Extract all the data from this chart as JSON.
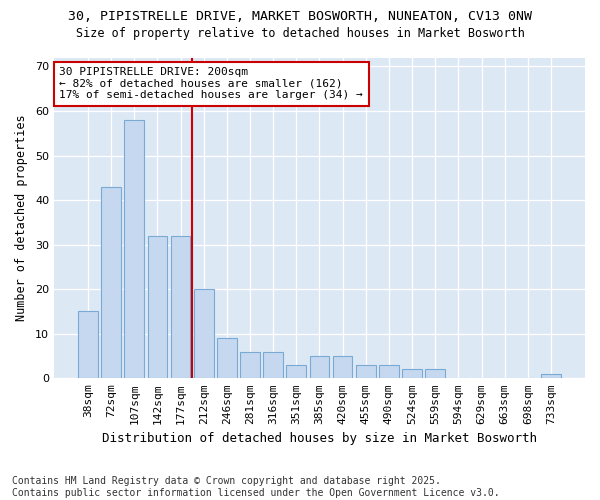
{
  "title1": "30, PIPISTRELLE DRIVE, MARKET BOSWORTH, NUNEATON, CV13 0NW",
  "title2": "Size of property relative to detached houses in Market Bosworth",
  "xlabel": "Distribution of detached houses by size in Market Bosworth",
  "ylabel": "Number of detached properties",
  "categories": [
    "38sqm",
    "72sqm",
    "107sqm",
    "142sqm",
    "177sqm",
    "212sqm",
    "246sqm",
    "281sqm",
    "316sqm",
    "351sqm",
    "385sqm",
    "420sqm",
    "455sqm",
    "490sqm",
    "524sqm",
    "559sqm",
    "594sqm",
    "629sqm",
    "663sqm",
    "698sqm",
    "733sqm"
  ],
  "values": [
    15,
    43,
    58,
    32,
    32,
    20,
    9,
    6,
    6,
    3,
    5,
    5,
    3,
    3,
    2,
    2,
    0,
    0,
    0,
    0,
    1
  ],
  "bar_color": "#c5d8f0",
  "bar_edge_color": "#7aaad4",
  "vline_x_idx": 5,
  "vline_color": "#cc0000",
  "annotation_text": "30 PIPISTRELLE DRIVE: 200sqm\n← 82% of detached houses are smaller (162)\n17% of semi-detached houses are larger (34) →",
  "annotation_box_color": "#ffffff",
  "annotation_box_edge": "#cc0000",
  "ylim": [
    0,
    72
  ],
  "yticks": [
    0,
    10,
    20,
    30,
    40,
    50,
    60,
    70
  ],
  "footer": "Contains HM Land Registry data © Crown copyright and database right 2025.\nContains public sector information licensed under the Open Government Licence v3.0.",
  "bg_color": "#ffffff",
  "plot_bg_color": "#dde8f5"
}
